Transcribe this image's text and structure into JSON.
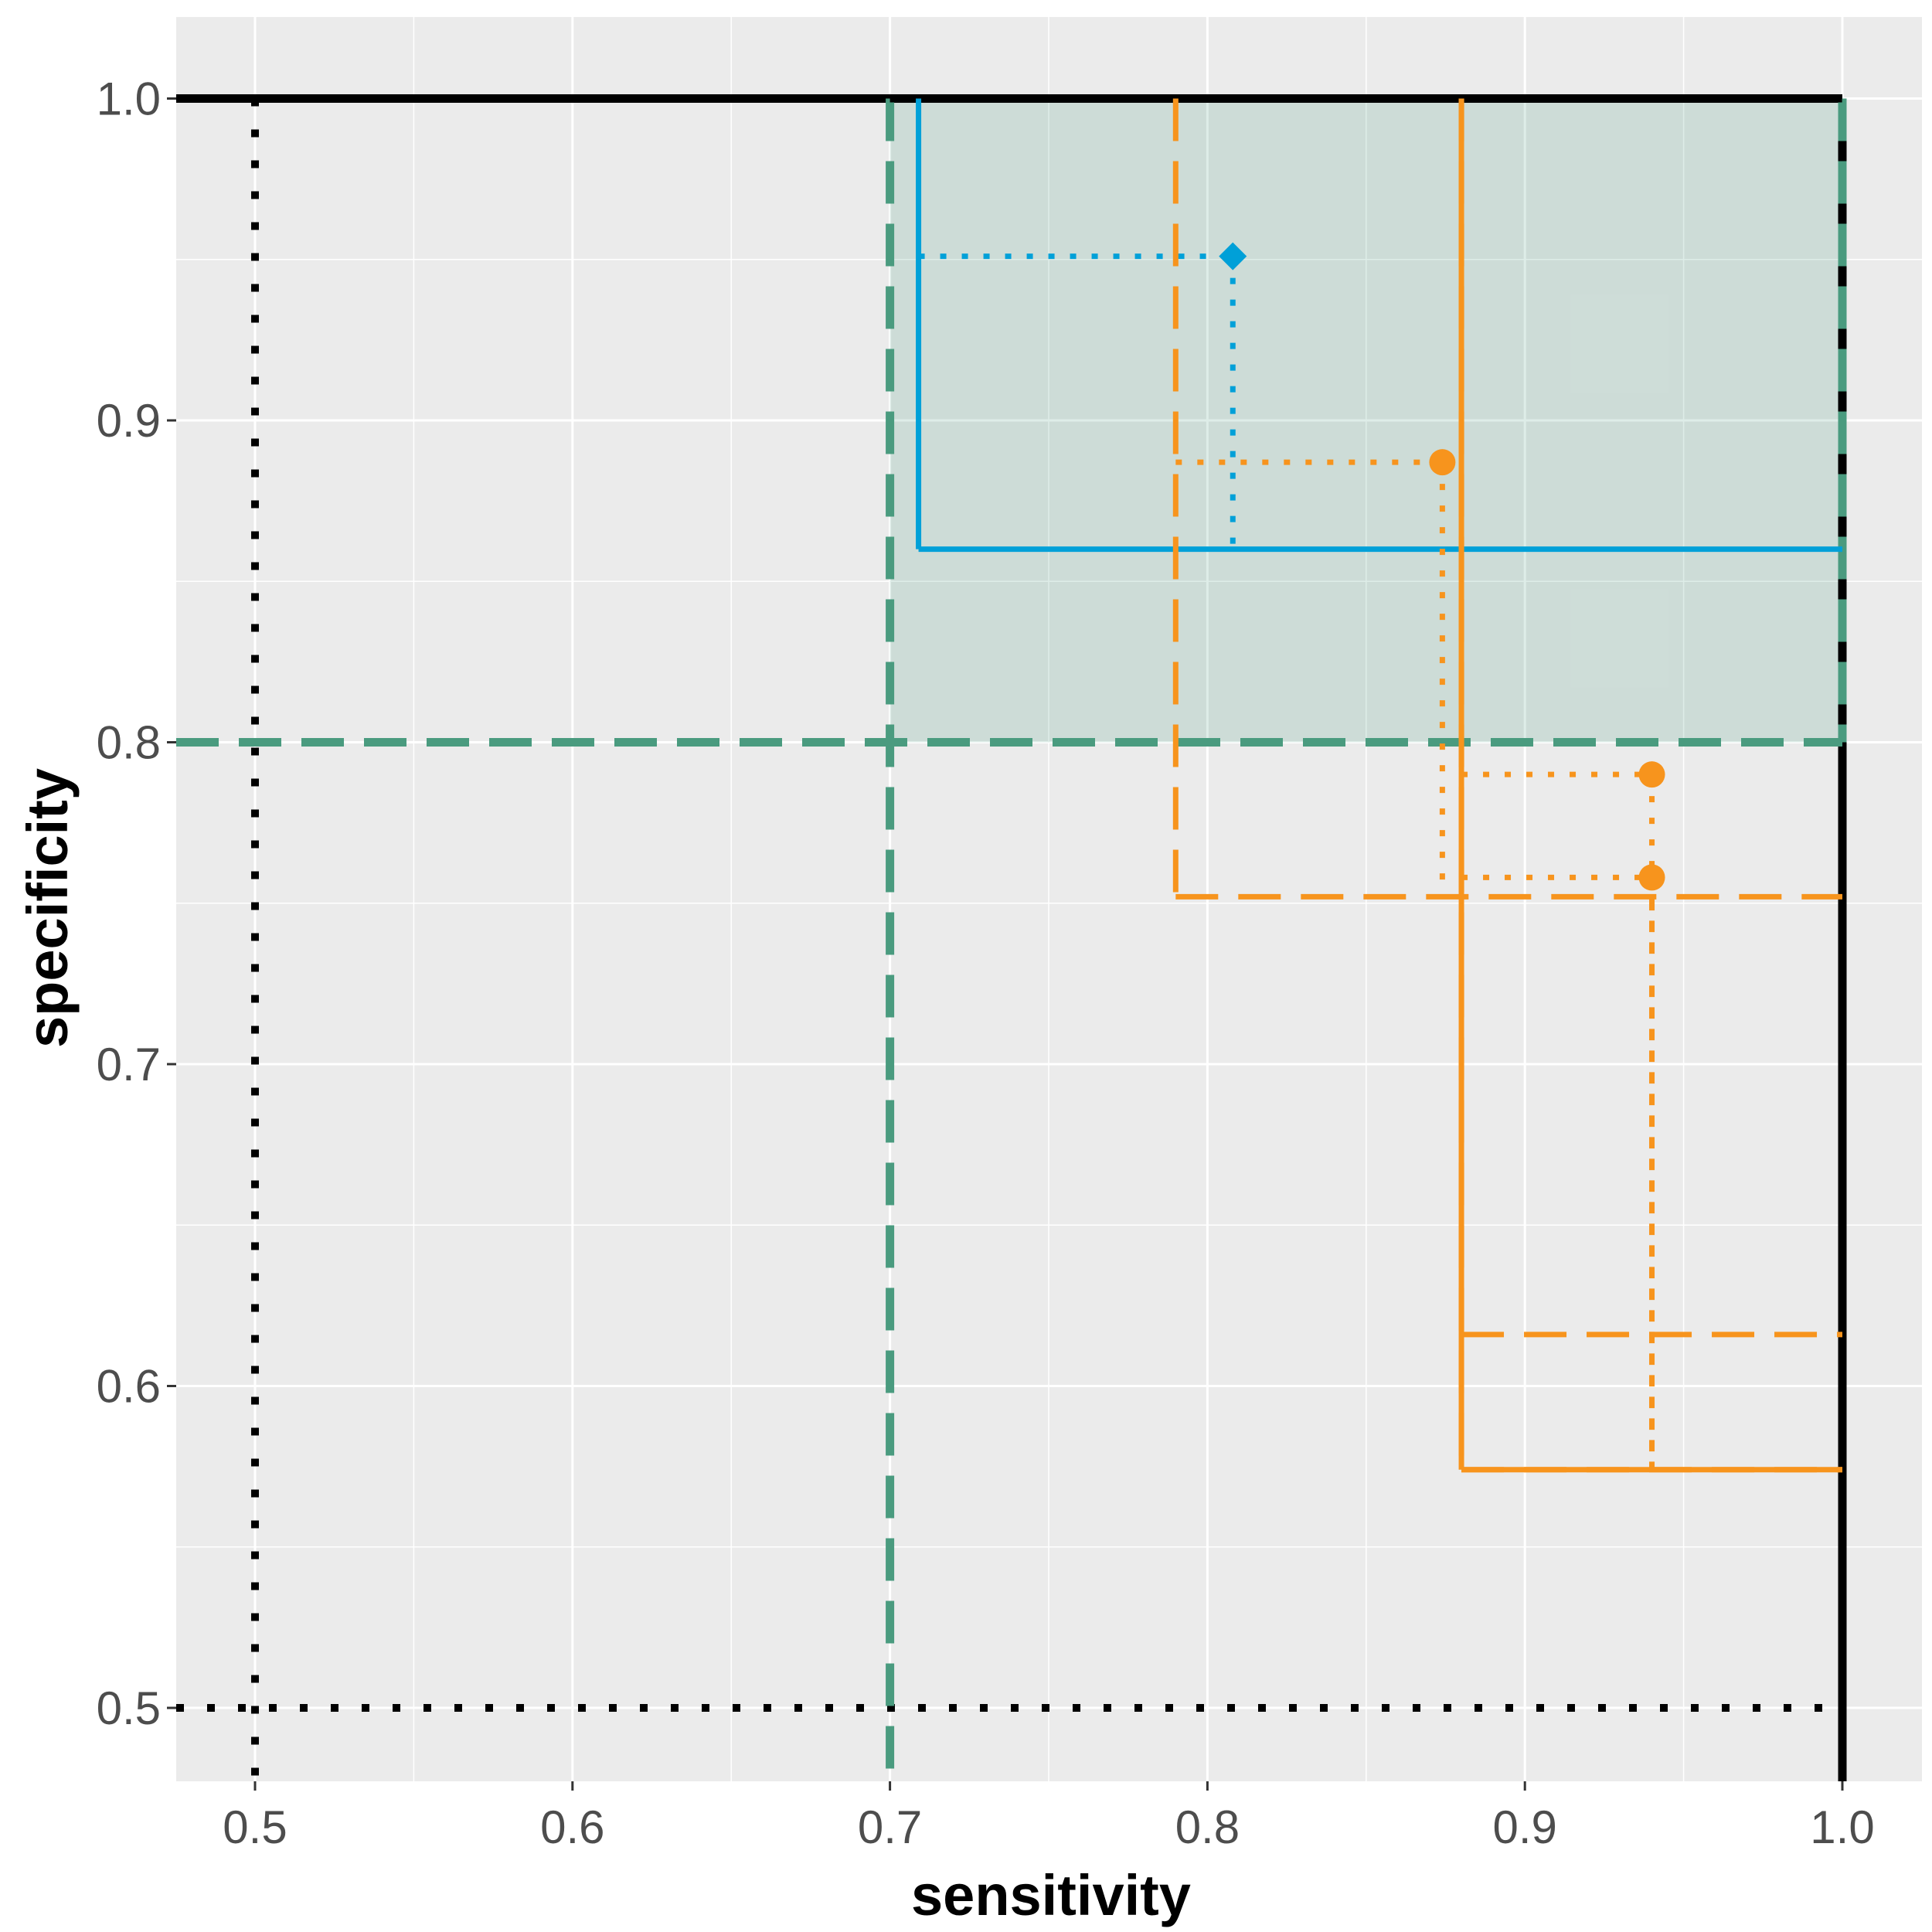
{
  "chart_data": {
    "type": "scatter",
    "title": "",
    "xlabel": "sensitivity",
    "ylabel": "specificity",
    "xlim": [
      0.475,
      1.0125
    ],
    "ylim": [
      0.475,
      1.025
    ],
    "grid": true,
    "background": "#ebebeb",
    "x_ticks": [
      {
        "value": 0.5,
        "label": "0.5"
      },
      {
        "value": 0.6,
        "label": "0.6"
      },
      {
        "value": 0.7,
        "label": "0.7"
      },
      {
        "value": 0.8,
        "label": "0.8"
      },
      {
        "value": 0.9,
        "label": "0.9"
      },
      {
        "value": 1.0,
        "label": "1.0"
      }
    ],
    "y_ticks": [
      {
        "value": 0.5,
        "label": "0.5"
      },
      {
        "value": 0.6,
        "label": "0.6"
      },
      {
        "value": 0.7,
        "label": "0.7"
      },
      {
        "value": 0.8,
        "label": "0.8"
      },
      {
        "value": 0.9,
        "label": "0.9"
      },
      {
        "value": 1.0,
        "label": "1.0"
      }
    ],
    "minor_grid": [
      0.55,
      0.65,
      0.75,
      0.85,
      0.95
    ],
    "target_region": {
      "x": [
        0.7,
        1.0
      ],
      "y": [
        0.8,
        1.0
      ],
      "color": "#4a9b7f",
      "fill_opacity": 0.18
    },
    "chance_lines": {
      "x": 0.5,
      "y": 0.5,
      "color": "#000000"
    },
    "boundary_lines": {
      "x": 1.0,
      "y": 1.0,
      "color": "#000000"
    },
    "series": [
      {
        "name": "blue",
        "color": "#00a0d8",
        "marker": "diamond",
        "points": [
          {
            "sensitivity": 0.808,
            "specificity": 0.951
          }
        ],
        "ci_box": {
          "x": [
            0.709,
            1.0
          ],
          "y": [
            0.86,
            1.0
          ],
          "style": "solid"
        }
      },
      {
        "name": "orange",
        "color": "#f7941d",
        "marker": "circle",
        "points": [
          {
            "sensitivity": 0.874,
            "specificity": 0.887
          },
          {
            "sensitivity": 0.94,
            "specificity": 0.79
          },
          {
            "sensitivity": 0.94,
            "specificity": 0.758
          }
        ],
        "ci_boxes": [
          {
            "x": [
              0.79,
              1.0
            ],
            "y": [
              0.752,
              1.0
            ],
            "style": "dashed"
          },
          {
            "x": [
              0.88,
              1.0
            ],
            "y": [
              0.616,
              1.0
            ],
            "style": "dashed"
          },
          {
            "x": [
              0.88,
              1.0
            ],
            "y": [
              0.574,
              1.0
            ],
            "style": "dashed"
          },
          {
            "x": [
              0.88,
              1.0
            ],
            "y": [
              0.574,
              1.0
            ],
            "style": "solid"
          }
        ]
      }
    ]
  }
}
